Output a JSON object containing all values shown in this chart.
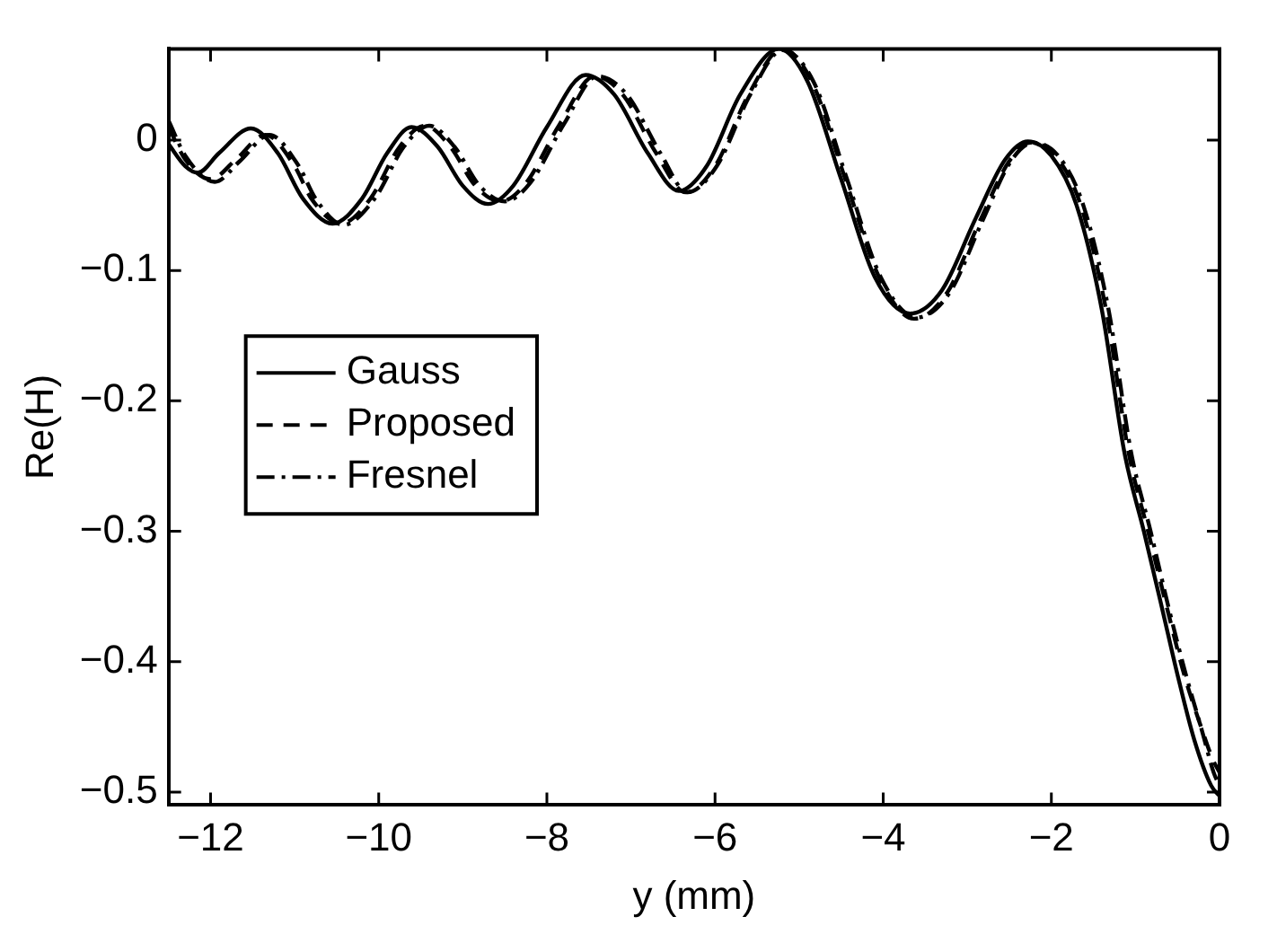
{
  "chart_data": {
    "type": "line",
    "xlabel": "y (mm)",
    "ylabel": "Re(H)",
    "xlim": [
      -12.5,
      0
    ],
    "xticks": [
      -12,
      -10,
      -8,
      -6,
      -4,
      -2,
      0
    ],
    "ylim": [
      -0.51,
      0.07
    ],
    "yticks": [
      -0.5,
      -0.4,
      -0.3,
      -0.2,
      -0.1,
      0
    ],
    "grid": false,
    "legend": "left",
    "marker": "none",
    "series": [
      {
        "name": "Gauss",
        "color": "#000000",
        "line_style": "solid",
        "x": [
          -12.5,
          -12.3,
          -12.15,
          -11.9,
          -11.52,
          -11.2,
          -10.9,
          -10.55,
          -10.2,
          -9.9,
          -9.61,
          -9.3,
          -9.0,
          -8.7,
          -8.4,
          -8.0,
          -7.54,
          -7.2,
          -6.8,
          -6.43,
          -6.1,
          -5.7,
          -5.24,
          -4.9,
          -4.5,
          -4.1,
          -3.68,
          -3.3,
          -2.9,
          -2.55,
          -2.28,
          -2.0,
          -1.7,
          -1.4,
          -1.13,
          -0.9,
          -0.68,
          -0.5,
          -0.3,
          -0.1,
          0
        ],
        "values": [
          -0.003,
          -0.02,
          -0.025,
          -0.01,
          0.009,
          -0.01,
          -0.045,
          -0.064,
          -0.045,
          -0.01,
          0.01,
          -0.005,
          -0.035,
          -0.049,
          -0.035,
          0.01,
          0.05,
          0.035,
          -0.01,
          -0.039,
          -0.02,
          0.035,
          0.07,
          0.045,
          -0.03,
          -0.105,
          -0.133,
          -0.115,
          -0.06,
          -0.015,
          -0.001,
          -0.012,
          -0.05,
          -0.13,
          -0.24,
          -0.3,
          -0.36,
          -0.41,
          -0.46,
          -0.495,
          -0.503
        ]
      },
      {
        "name": "Proposed",
        "color": "#000000",
        "line_style": "dashed",
        "x": [
          -12.5,
          -12.3,
          -12.0,
          -11.7,
          -11.35,
          -11.0,
          -10.8,
          -10.45,
          -10.1,
          -9.75,
          -9.45,
          -9.15,
          -8.85,
          -8.55,
          -8.25,
          -7.85,
          -7.43,
          -7.1,
          -6.7,
          -6.35,
          -6.0,
          -5.6,
          -5.2,
          -4.85,
          -4.45,
          -4.05,
          -3.63,
          -3.25,
          -2.85,
          -2.5,
          -2.25,
          -1.95,
          -1.65,
          -1.35,
          -1.08,
          -0.85,
          -0.62,
          -0.42,
          -0.22,
          -0.08,
          0
        ],
        "values": [
          0.01,
          -0.015,
          -0.03,
          -0.015,
          0.004,
          -0.02,
          -0.045,
          -0.064,
          -0.045,
          -0.005,
          0.011,
          -0.005,
          -0.035,
          -0.047,
          -0.033,
          0.012,
          0.049,
          0.035,
          -0.01,
          -0.04,
          -0.02,
          0.035,
          0.07,
          0.045,
          -0.03,
          -0.105,
          -0.137,
          -0.118,
          -0.062,
          -0.016,
          -0.002,
          -0.012,
          -0.05,
          -0.13,
          -0.24,
          -0.3,
          -0.36,
          -0.41,
          -0.45,
          -0.475,
          -0.485
        ]
      },
      {
        "name": "Fresnel",
        "color": "#000000",
        "line_style": "dashdot",
        "x": [
          -12.5,
          -12.3,
          -11.95,
          -11.65,
          -11.3,
          -10.95,
          -10.75,
          -10.42,
          -10.05,
          -9.7,
          -9.4,
          -9.1,
          -8.8,
          -8.5,
          -8.2,
          -7.8,
          -7.4,
          -7.05,
          -6.65,
          -6.33,
          -5.98,
          -5.58,
          -5.2,
          -4.83,
          -4.43,
          -4.03,
          -3.6,
          -3.22,
          -2.82,
          -2.48,
          -2.22,
          -1.92,
          -1.62,
          -1.32,
          -1.05,
          -0.82,
          -0.6,
          -0.4,
          -0.2,
          -0.07,
          0
        ],
        "values": [
          0.015,
          -0.012,
          -0.032,
          -0.016,
          0.004,
          -0.02,
          -0.045,
          -0.065,
          -0.045,
          -0.005,
          0.011,
          -0.005,
          -0.035,
          -0.047,
          -0.033,
          0.012,
          0.049,
          0.035,
          -0.01,
          -0.04,
          -0.02,
          0.035,
          0.069,
          0.045,
          -0.03,
          -0.105,
          -0.136,
          -0.118,
          -0.062,
          -0.016,
          -0.002,
          -0.012,
          -0.05,
          -0.13,
          -0.24,
          -0.3,
          -0.36,
          -0.41,
          -0.455,
          -0.485,
          -0.495
        ]
      }
    ]
  }
}
